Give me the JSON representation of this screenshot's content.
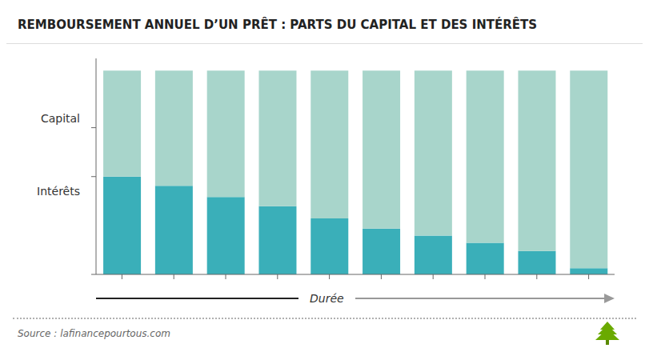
{
  "chart_data": {
    "type": "bar",
    "title": "REMBOURSEMENT ANNUEL D’UN PRÊT : PARTS DU CAPITAL ET DES INTÉRÊTS",
    "xlabel": "Durée",
    "categories": [
      null,
      null,
      null,
      null,
      null,
      null,
      null,
      null,
      null,
      null
    ],
    "series": [
      {
        "name": "Intérêts",
        "color": "#3aafb9",
        "values": [
          4.8,
          4.35,
          3.8,
          3.35,
          2.75,
          2.25,
          1.9,
          1.55,
          1.15,
          0.3
        ]
      },
      {
        "name": "Capital",
        "color": "#a8d5cb",
        "values": [
          5.2,
          5.65,
          6.2,
          6.65,
          7.25,
          7.75,
          8.1,
          8.45,
          8.85,
          9.7
        ]
      }
    ],
    "stacked": true,
    "ylim": [
      0,
      10.6
    ],
    "yticks": [
      0,
      4.8,
      7.2
    ],
    "tick_labels": false,
    "annotations": [
      "Source : lafinancepourtous.com"
    ]
  }
}
